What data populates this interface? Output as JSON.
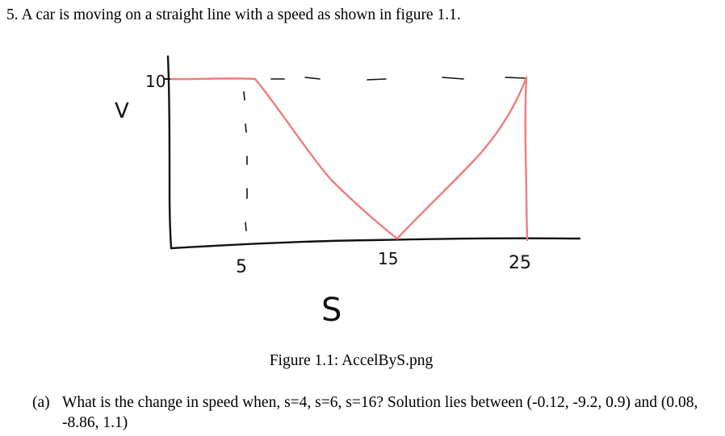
{
  "problem": {
    "number": "5.",
    "text": "A car is moving on a straight line with a speed as shown in figure 1.1."
  },
  "figure": {
    "caption": "Figure 1.1: AccelByS.png",
    "handwritten": {
      "y_axis_label": "V",
      "x_axis_label": "S",
      "y_tick": "10",
      "x_ticks": [
        "5",
        "15",
        "25"
      ]
    },
    "colors": {
      "ink": "#111111",
      "curve": "#f07c7c"
    }
  },
  "chart_data": {
    "type": "line",
    "xlabel": "S",
    "ylabel": "V",
    "x": [
      0,
      5,
      15,
      25,
      25
    ],
    "series": [
      {
        "values": [
          10,
          10,
          0,
          10,
          0
        ]
      }
    ],
    "tick_labels_x": [
      "5",
      "15",
      "25"
    ],
    "tick_labels_y": [
      "10"
    ],
    "xlim": [
      0,
      28
    ],
    "ylim": [
      0,
      10
    ]
  },
  "question": {
    "label": "(a)",
    "text": "What is the change in speed when, s=4, s=6, s=16? Solution lies between (-0.12, -9.2, 0.9) and (0.08, -8.86, 1.1)"
  }
}
